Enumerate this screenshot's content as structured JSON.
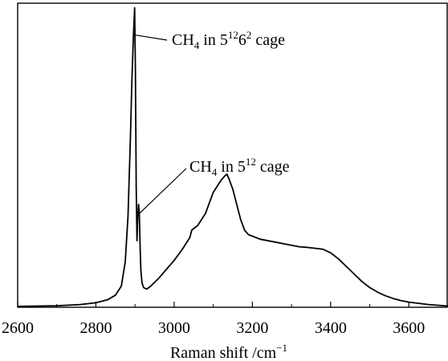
{
  "chart_data": {
    "type": "line",
    "title": "",
    "xlabel": "Raman shift /cm",
    "xlabel_superscript": "−1",
    "ylabel": "",
    "xlim": [
      2600,
      3700
    ],
    "ylim": [
      0,
      100
    ],
    "x_ticks": [
      2600,
      2800,
      3000,
      3200,
      3400,
      3600
    ],
    "y_ticks_shown": false,
    "grid": false,
    "legend": "none",
    "line_color": "#000000",
    "series": [
      {
        "x": [
          2600,
          2700,
          2760,
          2800,
          2830,
          2850,
          2865,
          2875,
          2882,
          2888,
          2892,
          2896,
          2899,
          2901,
          2903,
          2905,
          2907,
          2909,
          2911,
          2913,
          2915,
          2918,
          2922,
          2930,
          2940,
          2960,
          2980,
          3000,
          3020,
          3040,
          3045,
          3050,
          3060,
          3080,
          3100,
          3120,
          3130,
          3135,
          3140,
          3150,
          3160,
          3170,
          3180,
          3190,
          3200,
          3220,
          3240,
          3260,
          3280,
          3300,
          3320,
          3340,
          3360,
          3380,
          3400,
          3420,
          3440,
          3460,
          3480,
          3500,
          3520,
          3540,
          3560,
          3580,
          3600,
          3650,
          3700
        ],
        "y": [
          0.3,
          0.5,
          0.9,
          1.5,
          2.5,
          4.0,
          7.0,
          15.0,
          30.0,
          55.0,
          75.0,
          90.0,
          99.0,
          78.0,
          40.0,
          22.0,
          30.0,
          34.0,
          31.0,
          20.0,
          12.0,
          8.0,
          6.5,
          6.0,
          7.0,
          9.5,
          12.5,
          15.5,
          19.0,
          23.0,
          25.5,
          26.0,
          27.0,
          31.0,
          38.0,
          42.0,
          43.5,
          44.0,
          42.5,
          39.0,
          34.0,
          29.0,
          25.5,
          24.0,
          23.5,
          22.5,
          22.0,
          21.5,
          21.0,
          20.5,
          20.0,
          19.8,
          19.5,
          19.2,
          18.0,
          16.0,
          13.5,
          11.0,
          8.5,
          6.5,
          5.0,
          3.8,
          2.9,
          2.2,
          1.7,
          0.9,
          0.4
        ]
      }
    ],
    "annotations": [
      {
        "main": "CH",
        "sub": "4",
        "mid": " in 5",
        "sup1": "12",
        "mid2": "6",
        "sup2": "2",
        "tail": " cage",
        "target_x": 2899,
        "target_y": 90
      },
      {
        "main": "CH",
        "sub": "4",
        "mid": " in 5",
        "sup1": "12",
        "tail": " cage",
        "target_x": 2909,
        "target_y": 31
      }
    ]
  }
}
